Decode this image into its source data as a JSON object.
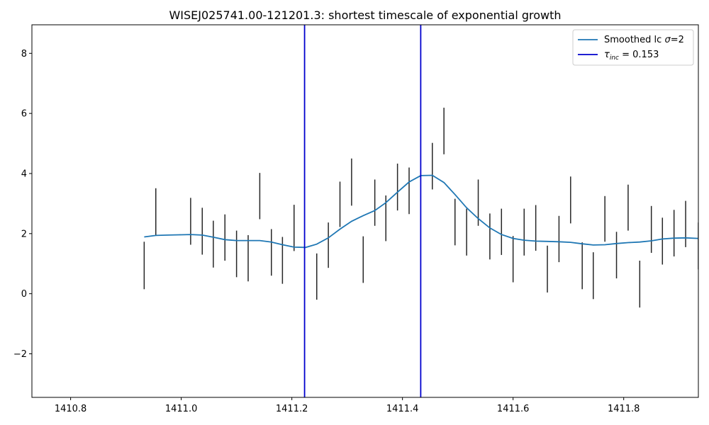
{
  "chart_data": {
    "type": "line",
    "title": "WISEJ025741.00-121201.3: shortest timescale of exponential growth",
    "xlabel": "",
    "ylabel": "",
    "xlim": [
      1410.73,
      1411.935
    ],
    "ylim": [
      -3.45,
      8.95
    ],
    "x_ticks": [
      1410.8,
      1411.0,
      1411.2,
      1411.4,
      1411.6,
      1411.8
    ],
    "x_tick_labels": [
      "1410.8",
      "1411.0",
      "1411.2",
      "1411.4",
      "1411.6",
      "1411.8"
    ],
    "y_ticks": [
      -2,
      0,
      2,
      4,
      6,
      8
    ],
    "y_tick_labels": [
      "−2",
      "0",
      "2",
      "4",
      "6",
      "8"
    ],
    "grid": false,
    "legend_position": "top-right",
    "series": [
      {
        "name": "Smoothed lc σ=2",
        "color": "#1f77b4",
        "x": [
          1410.933,
          1410.954,
          1410.975,
          1410.996,
          1411.017,
          1411.038,
          1411.058,
          1411.079,
          1411.1,
          1411.121,
          1411.142,
          1411.163,
          1411.183,
          1411.204,
          1411.225,
          1411.245,
          1411.266,
          1411.287,
          1411.308,
          1411.329,
          1411.35,
          1411.37,
          1411.391,
          1411.412,
          1411.433,
          1411.454,
          1411.475,
          1411.495,
          1411.516,
          1411.537,
          1411.558,
          1411.579,
          1411.6,
          1411.62,
          1411.641,
          1411.662,
          1411.683,
          1411.704,
          1411.725,
          1411.745,
          1411.766,
          1411.787,
          1411.808,
          1411.829,
          1411.85,
          1411.87,
          1411.891,
          1411.912,
          1411.935
        ],
        "y": [
          1.89,
          1.94,
          1.95,
          1.96,
          1.97,
          1.95,
          1.88,
          1.8,
          1.77,
          1.77,
          1.77,
          1.72,
          1.63,
          1.55,
          1.54,
          1.65,
          1.86,
          2.15,
          2.41,
          2.6,
          2.77,
          3.03,
          3.38,
          3.72,
          3.93,
          3.94,
          3.7,
          3.3,
          2.86,
          2.5,
          2.19,
          1.97,
          1.84,
          1.78,
          1.75,
          1.74,
          1.73,
          1.71,
          1.66,
          1.62,
          1.63,
          1.67,
          1.7,
          1.72,
          1.76,
          1.82,
          1.85,
          1.86,
          1.84
        ]
      }
    ],
    "error_bars": {
      "color": "#000000",
      "x": [
        1410.933,
        1410.954,
        1411.017,
        1411.038,
        1411.058,
        1411.079,
        1411.1,
        1411.121,
        1411.142,
        1411.163,
        1411.183,
        1411.204,
        1411.245,
        1411.266,
        1411.287,
        1411.308,
        1411.329,
        1411.35,
        1411.37,
        1411.391,
        1411.412,
        1411.454,
        1411.475,
        1411.495,
        1411.516,
        1411.537,
        1411.558,
        1411.579,
        1411.6,
        1411.62,
        1411.641,
        1411.662,
        1411.683,
        1411.704,
        1411.725,
        1411.745,
        1411.766,
        1411.787,
        1411.808,
        1411.829,
        1411.85,
        1411.87,
        1411.891,
        1411.912,
        1411.935
      ],
      "low": [
        0.15,
        1.95,
        1.63,
        1.3,
        0.87,
        1.1,
        0.55,
        0.41,
        2.48,
        0.6,
        0.33,
        1.42,
        -0.2,
        0.86,
        2.22,
        2.93,
        0.36,
        2.26,
        1.75,
        2.77,
        2.65,
        3.47,
        4.64,
        1.61,
        1.27,
        2.26,
        1.14,
        1.29,
        0.38,
        1.27,
        1.43,
        0.04,
        1.05,
        2.34,
        0.15,
        -0.18,
        1.73,
        0.51,
        2.1,
        -0.46,
        1.36,
        0.97,
        1.24,
        1.55,
        0.81
      ],
      "high": [
        1.73,
        3.51,
        3.19,
        2.86,
        2.43,
        2.64,
        2.1,
        1.95,
        4.02,
        2.15,
        1.89,
        2.96,
        1.34,
        2.37,
        3.73,
        4.5,
        1.91,
        3.8,
        3.27,
        4.33,
        4.2,
        5.02,
        6.19,
        3.16,
        2.83,
        3.8,
        2.67,
        2.83,
        1.92,
        2.83,
        2.95,
        1.6,
        2.59,
        3.9,
        1.71,
        1.38,
        3.25,
        2.06,
        3.63,
        1.1,
        2.92,
        2.53,
        2.79,
        3.09,
        2.37
      ]
    },
    "vlines": [
      {
        "x": 1411.223,
        "color": "#0000cd"
      },
      {
        "x": 1411.433,
        "color": "#0000cd"
      }
    ],
    "legend": {
      "entries": [
        {
          "type": "line",
          "color": "#1f77b4",
          "label": "Smoothed lc σ=2"
        },
        {
          "type": "line",
          "color": "#0000cd",
          "label": "τinc = 0.153"
        }
      ]
    }
  }
}
